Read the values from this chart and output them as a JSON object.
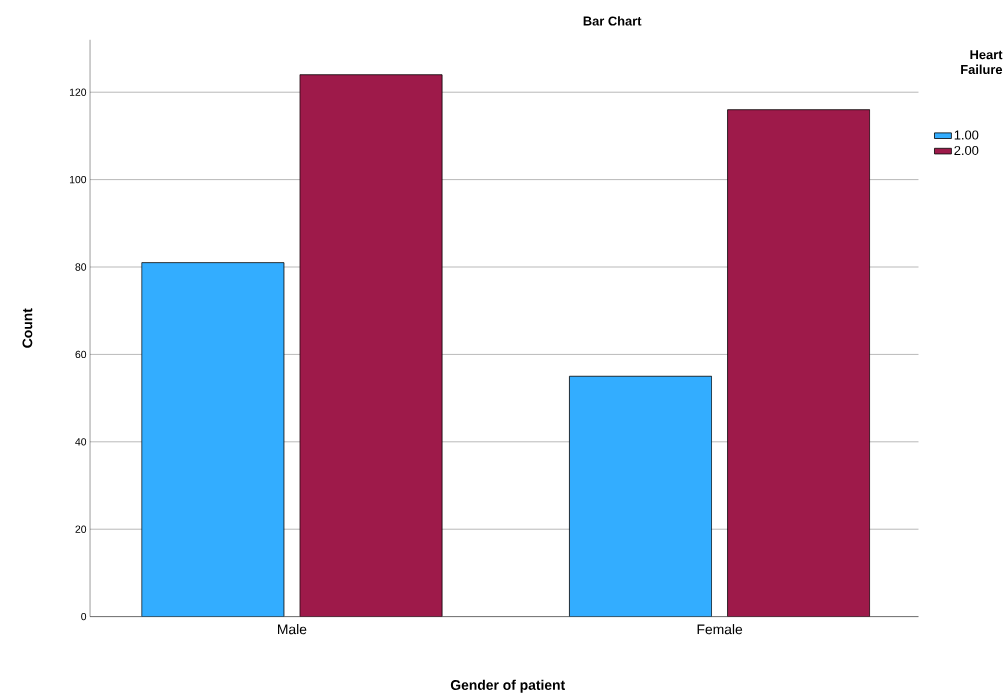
{
  "chart_data": {
    "type": "bar",
    "title": "Bar Chart",
    "xlabel": "Gender of patient",
    "ylabel": "Count",
    "legend_title": "Heart Failure",
    "categories": [
      "Male",
      "Female"
    ],
    "series": [
      {
        "name": "1.00",
        "color": "#33adff",
        "values": [
          81,
          55
        ]
      },
      {
        "name": "2.00",
        "color": "#9e1a4a",
        "values": [
          124,
          116
        ]
      }
    ],
    "ylim": [
      0,
      132
    ],
    "yticks": [
      0,
      20,
      40,
      60,
      80,
      100,
      120
    ],
    "grid": "y",
    "legend": "top right"
  }
}
